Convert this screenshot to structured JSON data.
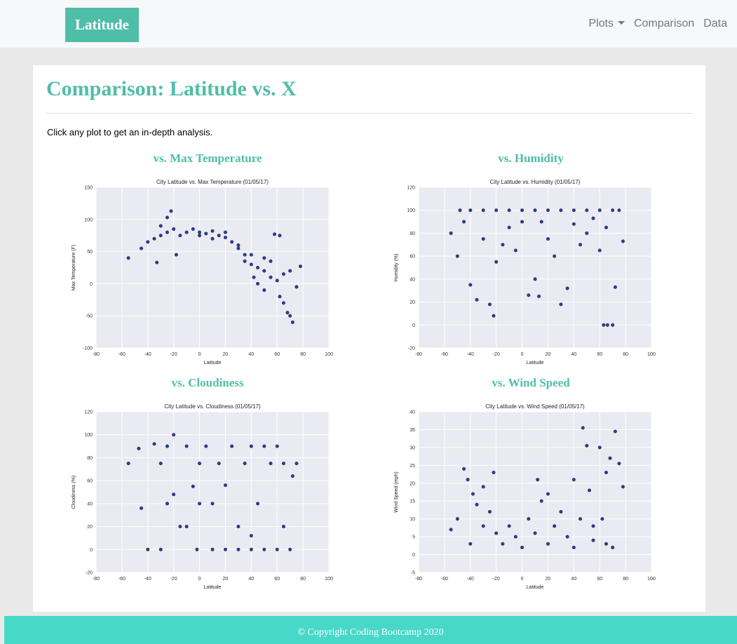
{
  "navbar": {
    "brand": "Latitude",
    "links": [
      "Plots",
      "Comparison",
      "Data"
    ]
  },
  "header": {
    "title": "Comparison: Latitude vs. X"
  },
  "intro": "Click any plot to get an in-depth analysis.",
  "sections": [
    "vs. Max Temperature",
    "vs. Humidity",
    "vs. Cloudiness",
    "vs. Wind Speed"
  ],
  "chart_data": [
    {
      "type": "scatter",
      "title": "City Latitude vs. Max Temperature (01/05/17)",
      "x_label": "Latitude",
      "y_label": "Max Temperature (F)",
      "xlim": [
        -80,
        100
      ],
      "xticks": [
        -80,
        -60,
        -40,
        -20,
        0,
        20,
        40,
        60,
        80,
        100
      ],
      "ylim": [
        -100,
        150
      ],
      "yticks": [
        -100,
        -50,
        0,
        50,
        100,
        150
      ],
      "grid": true,
      "color": "#1b2a80",
      "x": [
        -55,
        -45,
        -40,
        -35,
        -30,
        -25,
        -20,
        -22,
        -25,
        -15,
        -10,
        -5,
        0,
        5,
        10,
        15,
        20,
        25,
        30,
        35,
        40,
        45,
        50,
        55,
        60,
        62,
        65,
        68,
        70,
        72,
        75,
        78,
        58,
        62,
        45,
        50,
        35,
        40,
        30,
        20,
        -33,
        -30,
        -18,
        10,
        0,
        55,
        65,
        70,
        50,
        42
      ],
      "y": [
        40,
        55,
        65,
        70,
        75,
        80,
        85,
        113,
        103,
        75,
        80,
        85,
        80,
        78,
        82,
        75,
        72,
        65,
        55,
        45,
        30,
        25,
        20,
        10,
        5,
        -20,
        -30,
        -45,
        -50,
        -60,
        -5,
        27,
        77,
        75,
        0,
        -10,
        35,
        45,
        60,
        80,
        33,
        90,
        45,
        70,
        75,
        35,
        15,
        20,
        40,
        10
      ]
    },
    {
      "type": "scatter",
      "title": "City Latitude vs. Humidity (01/05/17)",
      "x_label": "Latitude",
      "y_label": "Humidity (%)",
      "xlim": [
        -80,
        100
      ],
      "xticks": [
        -80,
        -60,
        -40,
        -20,
        0,
        20,
        40,
        60,
        80,
        100
      ],
      "ylim": [
        -20,
        120
      ],
      "yticks": [
        -20,
        0,
        20,
        40,
        60,
        80,
        100,
        120
      ],
      "grid": true,
      "color": "#1b2a80",
      "x": [
        -48,
        -40,
        -30,
        -20,
        -10,
        0,
        10,
        20,
        30,
        40,
        50,
        60,
        70,
        75,
        -55,
        -50,
        -45,
        -40,
        -35,
        -30,
        -25,
        -22,
        -20,
        -10,
        -5,
        0,
        5,
        10,
        13,
        20,
        25,
        30,
        35,
        40,
        45,
        50,
        55,
        60,
        63,
        66,
        70,
        72,
        78,
        65,
        -15,
        15
      ],
      "y": [
        100,
        100,
        100,
        100,
        100,
        100,
        100,
        100,
        100,
        100,
        100,
        100,
        100,
        100,
        80,
        60,
        90,
        35,
        22,
        75,
        18,
        8,
        55,
        85,
        65,
        90,
        26,
        40,
        25,
        75,
        60,
        18,
        32,
        88,
        70,
        80,
        93,
        65,
        0,
        0,
        0,
        33,
        73,
        85,
        70,
        90
      ]
    },
    {
      "type": "scatter",
      "title": "City Latitude vs. Cloudiness (01/05/17)",
      "x_label": "Latitude",
      "y_label": "Cloudiness (%)",
      "xlim": [
        -80,
        100
      ],
      "xticks": [
        -80,
        -60,
        -40,
        -20,
        0,
        20,
        40,
        60,
        80,
        100
      ],
      "ylim": [
        -20,
        120
      ],
      "yticks": [
        -20,
        0,
        20,
        40,
        60,
        80,
        100,
        120
      ],
      "grid": true,
      "color": "#1b2a80",
      "x": [
        -55,
        -47,
        -45,
        -40,
        -35,
        -30,
        -25,
        -20,
        -15,
        -10,
        -5,
        0,
        -2,
        5,
        10,
        15,
        20,
        25,
        30,
        35,
        40,
        45,
        50,
        55,
        60,
        65,
        70,
        72,
        75,
        -30,
        -10,
        10,
        30,
        40,
        60,
        20,
        0,
        -20,
        50,
        65,
        40,
        -25
      ],
      "y": [
        75,
        88,
        36,
        0,
        92,
        75,
        40,
        100,
        20,
        90,
        55,
        75,
        0,
        90,
        40,
        75,
        0,
        90,
        20,
        75,
        90,
        40,
        0,
        75,
        90,
        20,
        0,
        64,
        75,
        0,
        20,
        0,
        0,
        0,
        0,
        56,
        40,
        48,
        90,
        75,
        12,
        90
      ]
    },
    {
      "type": "scatter",
      "title": "City Latitude vs. Wind Speed (01/05/17)",
      "x_label": "Latitude",
      "y_label": "Wind Speed (mph)",
      "xlim": [
        -80,
        100
      ],
      "xticks": [
        -80,
        -60,
        -40,
        -20,
        0,
        20,
        40,
        60,
        80,
        100
      ],
      "ylim": [
        -5,
        40
      ],
      "yticks": [
        -5,
        0,
        5,
        10,
        15,
        20,
        25,
        30,
        35,
        40
      ],
      "grid": true,
      "color": "#1b2a80",
      "x": [
        -55,
        -50,
        -45,
        -42,
        -40,
        -38,
        -35,
        -30,
        -25,
        -22,
        -20,
        -15,
        -10,
        -5,
        0,
        5,
        10,
        12,
        15,
        20,
        25,
        30,
        35,
        40,
        45,
        47,
        50,
        52,
        55,
        60,
        62,
        65,
        68,
        70,
        72,
        75,
        78,
        -30,
        20,
        40,
        55,
        65
      ],
      "y": [
        7,
        10,
        24,
        21,
        3,
        17,
        14,
        8,
        12,
        23,
        6,
        3,
        8,
        5,
        2,
        10,
        6,
        21,
        15,
        3,
        8,
        12,
        5,
        2,
        10,
        35.5,
        30.5,
        18,
        4,
        30,
        10,
        23,
        27,
        2,
        34.5,
        25.5,
        19,
        19,
        17,
        21,
        8,
        3
      ]
    }
  ],
  "footer": "© Copyright Coding Bootcamp 2020"
}
